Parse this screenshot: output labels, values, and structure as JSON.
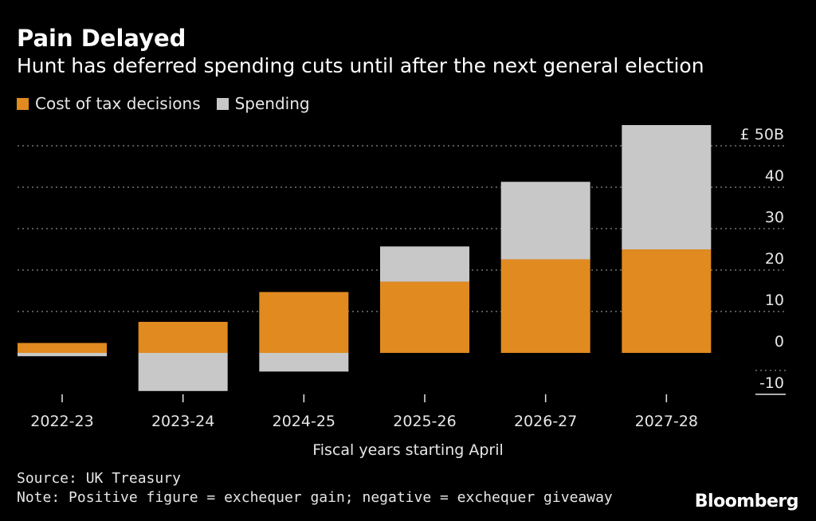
{
  "header": {
    "title": "Pain Delayed",
    "subtitle": "Hunt has deferred spending cuts until after the next general election"
  },
  "legend": {
    "items": [
      {
        "label": "Cost of tax decisions",
        "color": "#e08a20"
      },
      {
        "label": "Spending",
        "color": "#c8c8c8"
      }
    ]
  },
  "footer": {
    "source": "Source: UK Treasury",
    "note": "Note: Positive figure = exchequer gain; negative = exchequer giveaway",
    "brand": "Bloomberg"
  },
  "chart_data": {
    "type": "bar",
    "stacked": true,
    "categories": [
      "2022-23",
      "2023-24",
      "2024-25",
      "2025-26",
      "2026-27",
      "2027-28"
    ],
    "series": [
      {
        "name": "Cost of tax decisions",
        "color": "#e08a20",
        "values": [
          2.4,
          7.5,
          14.7,
          17.2,
          22.6,
          25.0
        ]
      },
      {
        "name": "Spending",
        "color": "#c8c8c8",
        "values": [
          -0.8,
          -9.2,
          -4.5,
          8.5,
          18.7,
          30.0
        ]
      }
    ],
    "xlabel": "Fiscal years starting April",
    "ylabel": "",
    "y_ticks": [
      -10,
      0,
      10,
      20,
      30,
      40,
      50
    ],
    "y_tick_labels": [
      "-10",
      "0",
      "10",
      "20",
      "30",
      "40",
      "£ 50B"
    ],
    "ylim": [
      -10,
      55
    ],
    "y_axis_position": "right",
    "grid": true
  }
}
